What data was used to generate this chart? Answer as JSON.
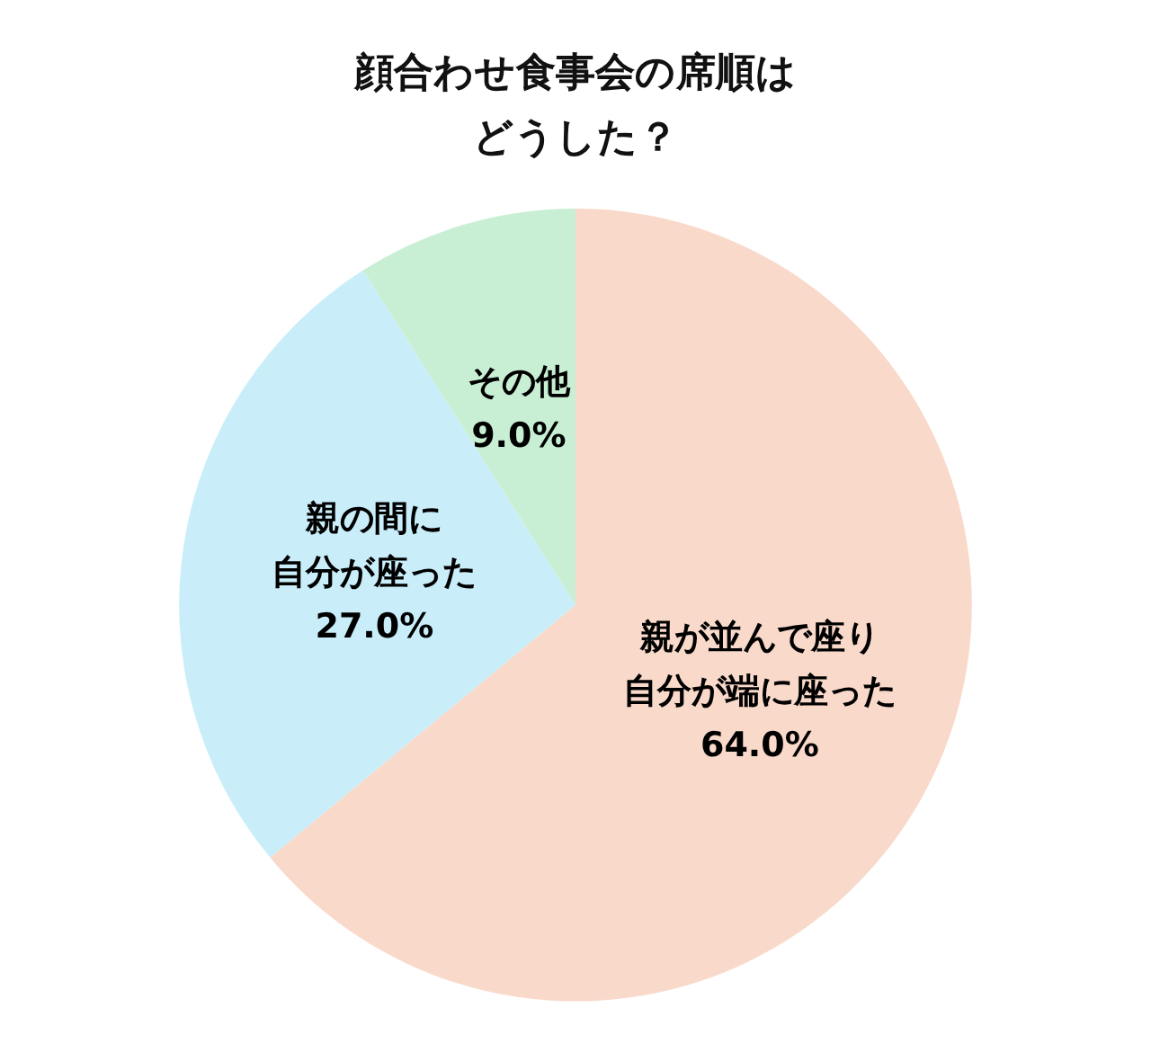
{
  "chart_data": {
    "type": "pie",
    "title": "顔合わせ食事会の席順はどうした？",
    "categories": [
      "親が並んで座り自分が端に座った",
      "親の間に自分が座った",
      "その他"
    ],
    "values": [
      64.0,
      27.0,
      9.0
    ],
    "value_labels": [
      "64.0%",
      "27.0%",
      "9.0%"
    ],
    "colors": [
      "#f9d9ca",
      "#c9eefa",
      "#c8efd3"
    ],
    "legend": false
  }
}
